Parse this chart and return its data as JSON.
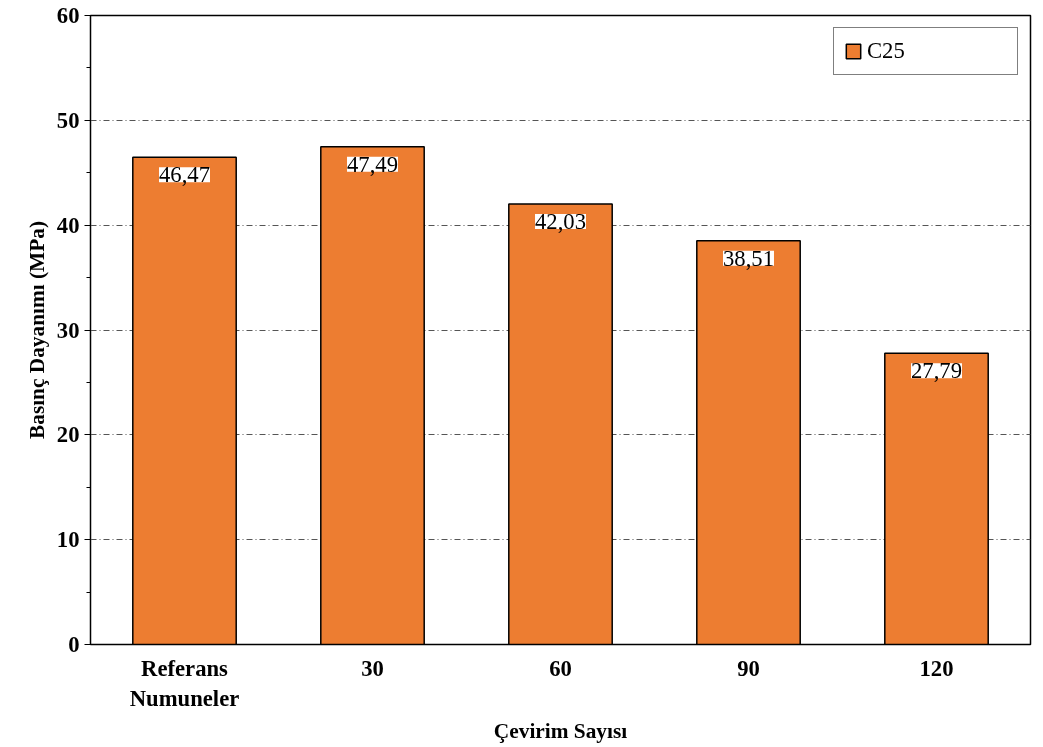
{
  "chart_data": {
    "type": "bar",
    "xlabel": "Çevirim Sayısı",
    "ylabel": "Basınç Dayanımı (MPa)",
    "categories": [
      "Referans Numuneler",
      "30",
      "60",
      "90",
      "120"
    ],
    "series": [
      {
        "name": "C25",
        "color": "#ed7d31",
        "values": [
          46.47,
          47.49,
          42.03,
          38.51,
          27.79
        ],
        "value_labels": [
          "46,47",
          "47,49",
          "42,03",
          "38,51",
          "27,79"
        ]
      }
    ],
    "ylim": [
      0,
      60
    ],
    "yticks": [
      0,
      {
        "value": 5,
        "label": null
      },
      10,
      {
        "value": 15,
        "label": null
      },
      20,
      {
        "value": 25,
        "label": null
      },
      30,
      {
        "value": 35,
        "label": null
      },
      40,
      {
        "value": 45,
        "label": null
      },
      50,
      {
        "value": 55,
        "label": null
      },
      60
    ],
    "grid": "y",
    "legend": "top right"
  }
}
